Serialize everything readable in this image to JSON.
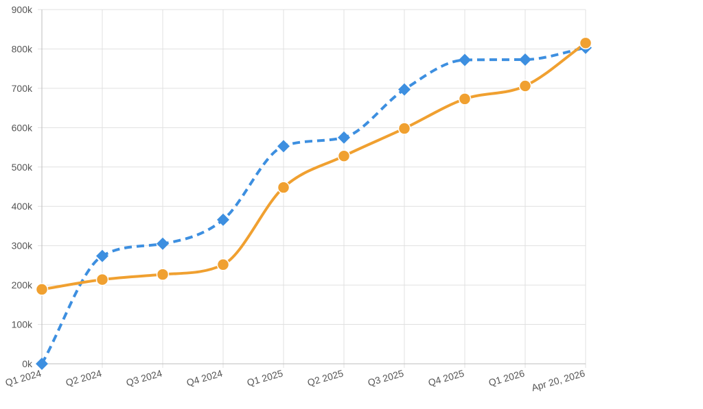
{
  "chart_data": {
    "type": "line",
    "title": "",
    "xlabel": "",
    "ylabel": "",
    "categories": [
      "Q1 2024",
      "Q2 2024",
      "Q3 2024",
      "Q4 2024",
      "Q1 2025",
      "Q2 2025",
      "Q3 2025",
      "Q4 2025",
      "Q1 2026",
      "Apr 20, 2026"
    ],
    "ylim": [
      0,
      900000
    ],
    "y_ticks": [
      {
        "value": 0,
        "label": "0k"
      },
      {
        "value": 100000,
        "label": "100k"
      },
      {
        "value": 200000,
        "label": "200k"
      },
      {
        "value": 300000,
        "label": "300k"
      },
      {
        "value": 400000,
        "label": "400k"
      },
      {
        "value": 500000,
        "label": "500k"
      },
      {
        "value": 600000,
        "label": "600k"
      },
      {
        "value": 700000,
        "label": "700k"
      },
      {
        "value": 800000,
        "label": "800k"
      },
      {
        "value": 900000,
        "label": "900k"
      }
    ],
    "grid": true,
    "legend": "none",
    "series": [
      {
        "values": [
          0,
          274000,
          305000,
          366000,
          553000,
          575000,
          697000,
          772000,
          773000,
          803000
        ],
        "color": "#3d8fe0",
        "line_style": "dashed",
        "marker": "diamond"
      },
      {
        "values": [
          189000,
          214000,
          227000,
          252000,
          448000,
          528000,
          598000,
          673000,
          706000,
          815000
        ],
        "color": "#f0a030",
        "line_style": "solid",
        "marker": "circle"
      }
    ]
  }
}
